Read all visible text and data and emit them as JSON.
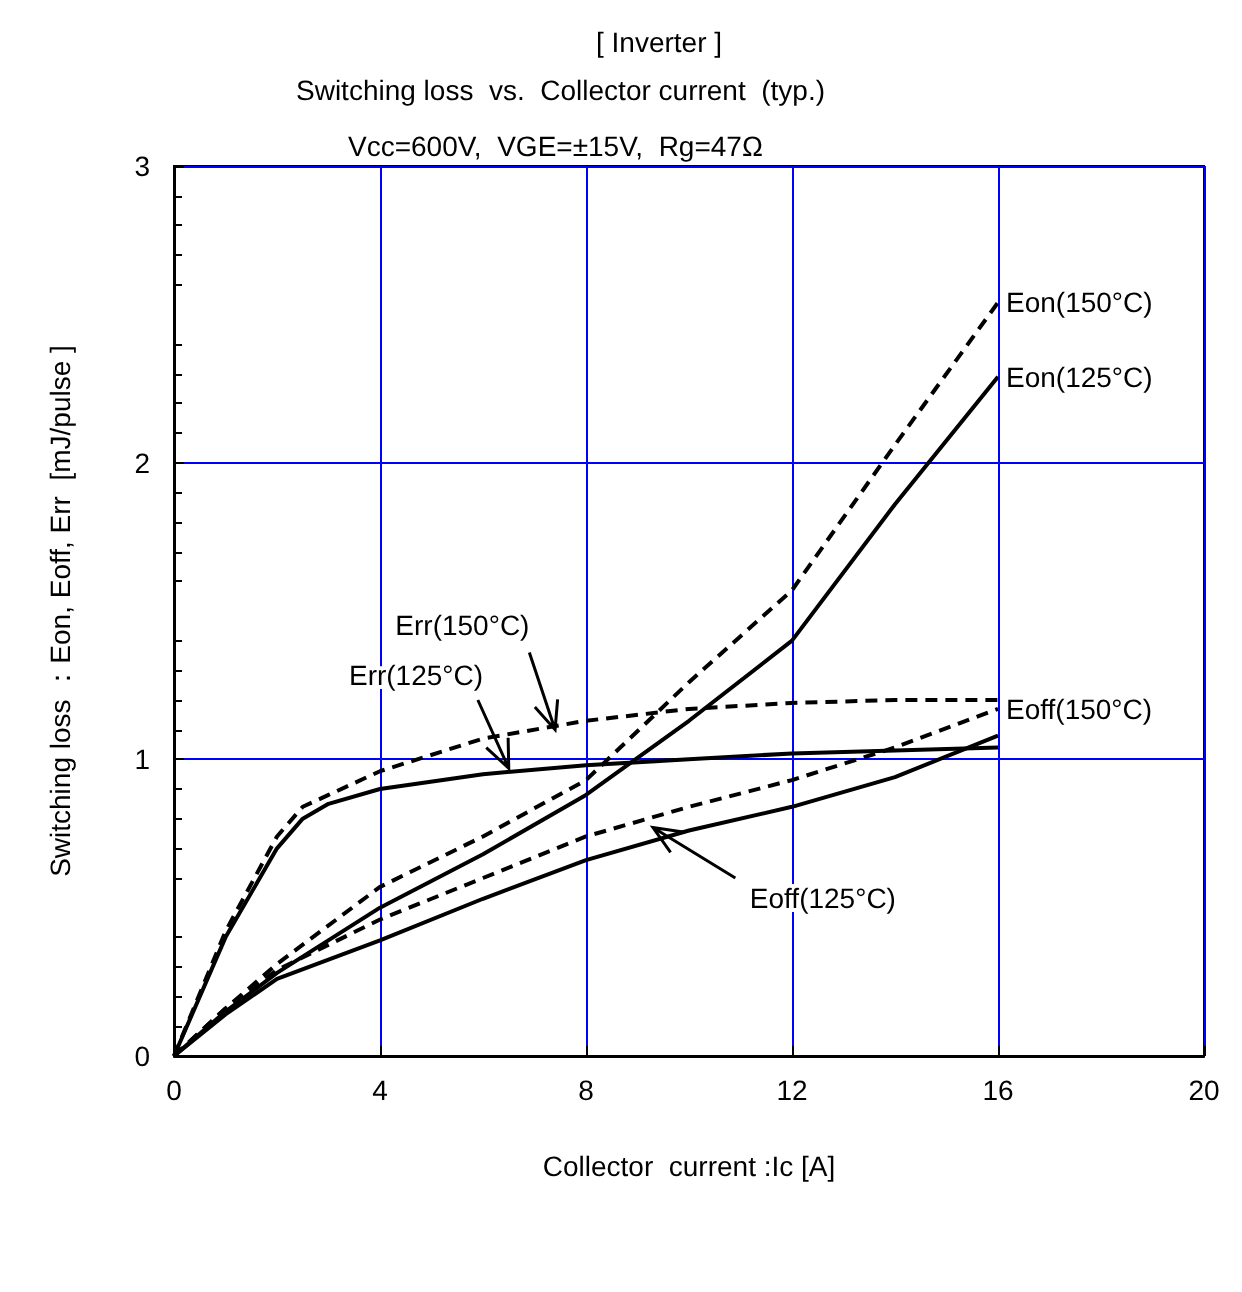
{
  "chart_data": {
    "type": "line",
    "title": "[ Inverter ]",
    "subtitle": "Switching loss  vs.  Collector current  (typ.)\nVcc=600V,  VGE=±15V,  Rg=47Ω",
    "xlabel": "Collector  current :Ic [A]",
    "ylabel": "Switching loss ：Eon, Eoff, Err  [mJ/pulse ]",
    "xlim": [
      0,
      20
    ],
    "xticks": [
      0,
      4,
      8,
      12,
      16,
      20
    ],
    "ylim": [
      0,
      3
    ],
    "yticks": [
      0,
      1,
      2,
      3
    ],
    "grid": true,
    "legend": false,
    "marker": "none",
    "series": [
      {
        "name": "Eon(150°C)",
        "color": "#000000",
        "line_style": "dashed",
        "x": [
          0,
          1,
          2,
          4,
          6,
          8,
          10,
          12,
          14,
          16
        ],
        "values": [
          0,
          0.16,
          0.31,
          0.57,
          0.74,
          0.93,
          1.26,
          1.57,
          2.06,
          2.54
        ]
      },
      {
        "name": "Eon(125°C)",
        "color": "#000000",
        "line_style": "solid",
        "x": [
          0,
          1,
          2,
          4,
          6,
          8,
          10,
          12,
          14,
          16
        ],
        "values": [
          0,
          0.15,
          0.28,
          0.5,
          0.68,
          0.88,
          1.13,
          1.4,
          1.86,
          2.29
        ]
      },
      {
        "name": "Err(150°C)",
        "color": "#000000",
        "line_style": "dashed",
        "x": [
          0,
          1,
          2,
          2.5,
          3,
          4,
          6,
          8,
          10,
          12,
          14,
          16
        ],
        "values": [
          0,
          0.42,
          0.74,
          0.84,
          0.88,
          0.96,
          1.07,
          1.13,
          1.17,
          1.19,
          1.2,
          1.2
        ]
      },
      {
        "name": "Err(125°C)",
        "color": "#000000",
        "line_style": "solid",
        "x": [
          0,
          1,
          2,
          2.5,
          3,
          4,
          6,
          8,
          10,
          12,
          14,
          16
        ],
        "values": [
          0,
          0.4,
          0.7,
          0.8,
          0.85,
          0.9,
          0.95,
          0.98,
          1.0,
          1.02,
          1.03,
          1.04
        ]
      },
      {
        "name": "Eoff(150°C)",
        "color": "#000000",
        "line_style": "dashed",
        "x": [
          0,
          1,
          2,
          4,
          6,
          8,
          10,
          12,
          14,
          16
        ],
        "values": [
          0,
          0.16,
          0.29,
          0.46,
          0.6,
          0.74,
          0.84,
          0.93,
          1.04,
          1.17
        ]
      },
      {
        "name": "Eoff(125°C)",
        "color": "#000000",
        "line_style": "solid",
        "x": [
          0,
          1,
          2,
          4,
          6,
          8,
          10,
          12,
          14,
          16
        ],
        "values": [
          0,
          0.14,
          0.26,
          0.39,
          0.53,
          0.66,
          0.76,
          0.84,
          0.94,
          1.08
        ]
      }
    ]
  }
}
